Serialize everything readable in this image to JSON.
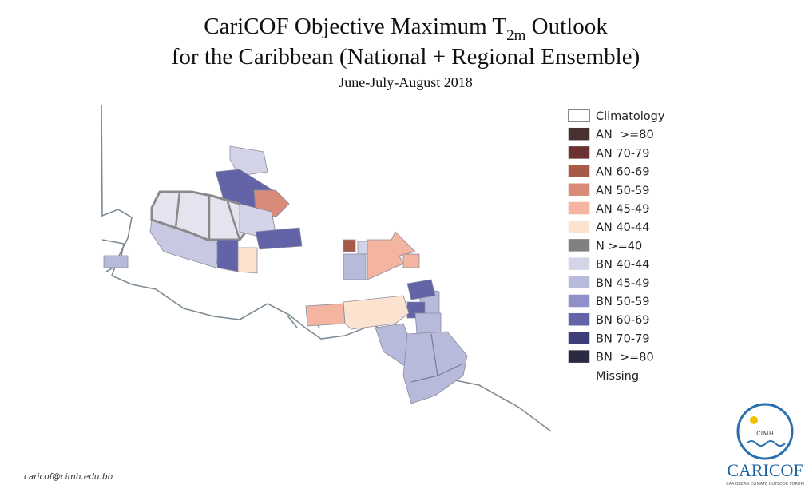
{
  "header": {
    "title_part1": "CariCOF Objective Maximum T",
    "title_subscript": "2m",
    "title_part2": " Outlook",
    "title_line2": "for the Caribbean (National + Regional Ensemble)",
    "subtitle": "June-July-August 2018"
  },
  "legend": [
    {
      "label": "Climatology",
      "color": "#ffffff"
    },
    {
      "label": "AN  >=80",
      "color": "#4a3030"
    },
    {
      "label": "AN 70-79",
      "color": "#6b3232"
    },
    {
      "label": "AN 60-69",
      "color": "#a85a48"
    },
    {
      "label": "AN 50-59",
      "color": "#d98a78"
    },
    {
      "label": "AN 45-49",
      "color": "#f3b5a0"
    },
    {
      "label": "AN 40-44",
      "color": "#fbe3cf"
    },
    {
      "label": "N >=40",
      "color": "#808080"
    },
    {
      "label": "BN 40-44",
      "color": "#d4d4e8"
    },
    {
      "label": "BN 45-49",
      "color": "#b8badc"
    },
    {
      "label": "BN 50-59",
      "color": "#8f92c8"
    },
    {
      "label": "BN 60-69",
      "color": "#6364a8"
    },
    {
      "label": "BN 70-79",
      "color": "#3d3d78"
    },
    {
      "label": "BN  >=80",
      "color": "#2a2a40"
    },
    {
      "label": "Missing"
    }
  ],
  "footer": {
    "email": "caricof@cimh.edu.bb"
  },
  "logo": {
    "inner": "CIMH",
    "name": "CARICOF",
    "tagline": "CARIBBEAN CLIMATE OUTLOOK FORUM"
  }
}
